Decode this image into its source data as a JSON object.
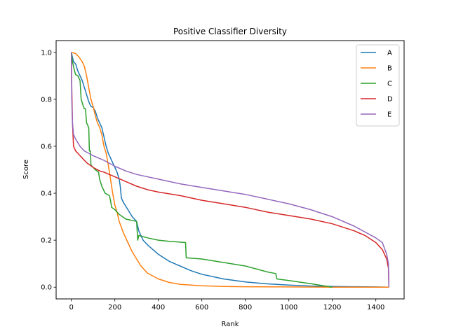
{
  "chart_data": {
    "type": "line",
    "title": "Positive Classifier Diversity",
    "xlabel": "Rank",
    "ylabel": "Score",
    "xlim": [
      -70,
      1530
    ],
    "ylim": [
      -0.05,
      1.05
    ],
    "x_ticks": [
      0,
      200,
      400,
      600,
      800,
      1000,
      1200,
      1400
    ],
    "y_ticks": [
      0.0,
      0.2,
      0.4,
      0.6,
      0.8,
      1.0
    ],
    "x_tick_labels": [
      "0",
      "200",
      "400",
      "600",
      "800",
      "1000",
      "1200",
      "1400"
    ],
    "y_tick_labels": [
      "0.0",
      "0.2",
      "0.4",
      "0.6",
      "0.8",
      "1.0"
    ],
    "grid": false,
    "legend_position": "top-right",
    "series": [
      {
        "name": "A",
        "color": "#1f77b4",
        "points": [
          [
            0,
            1.0
          ],
          [
            10,
            0.96
          ],
          [
            20,
            0.95
          ],
          [
            30,
            0.92
          ],
          [
            40,
            0.9
          ],
          [
            50,
            0.88
          ],
          [
            60,
            0.85
          ],
          [
            70,
            0.82
          ],
          [
            80,
            0.79
          ],
          [
            90,
            0.77
          ],
          [
            100,
            0.765
          ],
          [
            110,
            0.75
          ],
          [
            120,
            0.72
          ],
          [
            130,
            0.7
          ],
          [
            140,
            0.68
          ],
          [
            150,
            0.64
          ],
          [
            160,
            0.6
          ],
          [
            170,
            0.57
          ],
          [
            180,
            0.55
          ],
          [
            190,
            0.53
          ],
          [
            200,
            0.51
          ],
          [
            210,
            0.49
          ],
          [
            220,
            0.46
          ],
          [
            225,
            0.43
          ],
          [
            230,
            0.38
          ],
          [
            240,
            0.36
          ],
          [
            260,
            0.33
          ],
          [
            280,
            0.3
          ],
          [
            300,
            0.28
          ],
          [
            310,
            0.24
          ],
          [
            320,
            0.22
          ],
          [
            330,
            0.2
          ],
          [
            350,
            0.18
          ],
          [
            400,
            0.14
          ],
          [
            450,
            0.11
          ],
          [
            500,
            0.09
          ],
          [
            550,
            0.07
          ],
          [
            600,
            0.055
          ],
          [
            700,
            0.035
          ],
          [
            800,
            0.022
          ],
          [
            900,
            0.014
          ],
          [
            1000,
            0.009
          ],
          [
            1100,
            0.005
          ],
          [
            1200,
            0.003
          ],
          [
            1300,
            0.002
          ],
          [
            1400,
            0.001
          ],
          [
            1460,
            0.0
          ]
        ]
      },
      {
        "name": "B",
        "color": "#ff7f0e",
        "points": [
          [
            0,
            1.0
          ],
          [
            20,
            0.995
          ],
          [
            35,
            0.98
          ],
          [
            50,
            0.96
          ],
          [
            60,
            0.94
          ],
          [
            70,
            0.9
          ],
          [
            80,
            0.85
          ],
          [
            90,
            0.8
          ],
          [
            100,
            0.77
          ],
          [
            110,
            0.73
          ],
          [
            120,
            0.7
          ],
          [
            130,
            0.68
          ],
          [
            140,
            0.65
          ],
          [
            150,
            0.6
          ],
          [
            160,
            0.57
          ],
          [
            170,
            0.52
          ],
          [
            180,
            0.46
          ],
          [
            190,
            0.4
          ],
          [
            200,
            0.35
          ],
          [
            210,
            0.32
          ],
          [
            220,
            0.28
          ],
          [
            240,
            0.23
          ],
          [
            260,
            0.19
          ],
          [
            280,
            0.15
          ],
          [
            300,
            0.12
          ],
          [
            320,
            0.09
          ],
          [
            350,
            0.06
          ],
          [
            400,
            0.035
          ],
          [
            450,
            0.02
          ],
          [
            500,
            0.012
          ],
          [
            600,
            0.006
          ],
          [
            700,
            0.003
          ],
          [
            800,
            0.002
          ],
          [
            1000,
            0.001
          ],
          [
            1200,
            0.0
          ],
          [
            1460,
            0.0
          ]
        ]
      },
      {
        "name": "C",
        "color": "#2ca02c",
        "points": [
          [
            0,
            1.0
          ],
          [
            5,
            0.96
          ],
          [
            15,
            0.92
          ],
          [
            20,
            0.905
          ],
          [
            30,
            0.9
          ],
          [
            40,
            0.88
          ],
          [
            45,
            0.8
          ],
          [
            55,
            0.77
          ],
          [
            60,
            0.76
          ],
          [
            65,
            0.76
          ],
          [
            70,
            0.7
          ],
          [
            75,
            0.69
          ],
          [
            80,
            0.68
          ],
          [
            83,
            0.58
          ],
          [
            88,
            0.58
          ],
          [
            90,
            0.52
          ],
          [
            100,
            0.51
          ],
          [
            110,
            0.5
          ],
          [
            125,
            0.49
          ],
          [
            130,
            0.46
          ],
          [
            140,
            0.43
          ],
          [
            155,
            0.4
          ],
          [
            175,
            0.39
          ],
          [
            180,
            0.37
          ],
          [
            185,
            0.34
          ],
          [
            200,
            0.33
          ],
          [
            220,
            0.31
          ],
          [
            250,
            0.29
          ],
          [
            300,
            0.28
          ],
          [
            305,
            0.2
          ],
          [
            310,
            0.22
          ],
          [
            350,
            0.21
          ],
          [
            400,
            0.2
          ],
          [
            450,
            0.195
          ],
          [
            525,
            0.19
          ],
          [
            528,
            0.125
          ],
          [
            600,
            0.12
          ],
          [
            700,
            0.105
          ],
          [
            800,
            0.09
          ],
          [
            900,
            0.065
          ],
          [
            940,
            0.058
          ],
          [
            945,
            0.035
          ],
          [
            1000,
            0.028
          ],
          [
            1100,
            0.015
          ],
          [
            1200,
            0.0
          ]
        ]
      },
      {
        "name": "D",
        "color": "#d62728",
        "points": [
          [
            0,
            1.0
          ],
          [
            2,
            0.85
          ],
          [
            5,
            0.7
          ],
          [
            10,
            0.6
          ],
          [
            20,
            0.58
          ],
          [
            30,
            0.57
          ],
          [
            40,
            0.56
          ],
          [
            50,
            0.55
          ],
          [
            70,
            0.53
          ],
          [
            100,
            0.51
          ],
          [
            130,
            0.495
          ],
          [
            150,
            0.49
          ],
          [
            200,
            0.47
          ],
          [
            250,
            0.45
          ],
          [
            300,
            0.43
          ],
          [
            350,
            0.415
          ],
          [
            400,
            0.405
          ],
          [
            500,
            0.39
          ],
          [
            600,
            0.37
          ],
          [
            700,
            0.355
          ],
          [
            800,
            0.34
          ],
          [
            900,
            0.32
          ],
          [
            1000,
            0.305
          ],
          [
            1100,
            0.29
          ],
          [
            1200,
            0.27
          ],
          [
            1300,
            0.24
          ],
          [
            1350,
            0.22
          ],
          [
            1400,
            0.19
          ],
          [
            1430,
            0.16
          ],
          [
            1450,
            0.12
          ],
          [
            1458,
            0.08
          ],
          [
            1460,
            0.0
          ]
        ]
      },
      {
        "name": "E",
        "color": "#9467bd",
        "points": [
          [
            0,
            1.0
          ],
          [
            2,
            0.8
          ],
          [
            5,
            0.7
          ],
          [
            10,
            0.65
          ],
          [
            20,
            0.63
          ],
          [
            40,
            0.6
          ],
          [
            60,
            0.58
          ],
          [
            80,
            0.57
          ],
          [
            100,
            0.56
          ],
          [
            150,
            0.54
          ],
          [
            200,
            0.515
          ],
          [
            250,
            0.495
          ],
          [
            300,
            0.48
          ],
          [
            400,
            0.46
          ],
          [
            500,
            0.44
          ],
          [
            600,
            0.425
          ],
          [
            700,
            0.41
          ],
          [
            800,
            0.395
          ],
          [
            900,
            0.375
          ],
          [
            1000,
            0.355
          ],
          [
            1100,
            0.33
          ],
          [
            1200,
            0.3
          ],
          [
            1300,
            0.26
          ],
          [
            1350,
            0.235
          ],
          [
            1400,
            0.21
          ],
          [
            1430,
            0.19
          ],
          [
            1440,
            0.165
          ],
          [
            1450,
            0.14
          ],
          [
            1458,
            0.1
          ],
          [
            1460,
            0.0
          ]
        ]
      }
    ]
  }
}
